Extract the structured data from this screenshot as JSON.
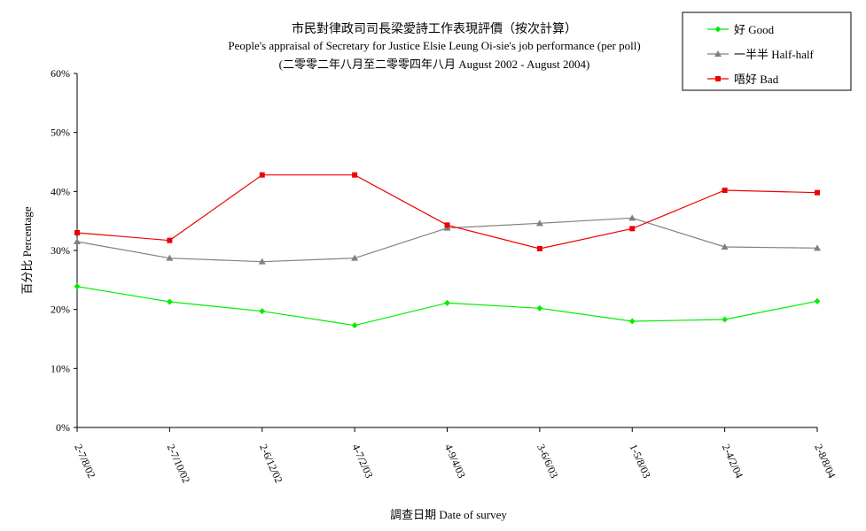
{
  "chart_data": {
    "type": "line",
    "title": "市民對律政司司長梁愛詩工作表現評價（按次計算）",
    "subtitle": "People's appraisal of Secretary for Justice Elsie Leung Oi-sie's job performance (per poll)",
    "subtitle2": "(二零零二年八月至二零零四年八月 August 2002 - August 2004)",
    "xlabel": "調查日期 Date of survey",
    "ylabel": "百分比 Percentage",
    "categories": [
      "2-7/8/02",
      "2-7/10/02",
      "2-6/12/02",
      "4-7/2/03",
      "4-9/4/03",
      "3-6/6/03",
      "1-5/8/03",
      "2-4/2/04",
      "2-8/8/04"
    ],
    "ylim": [
      0,
      60
    ],
    "yticks": [
      "0%",
      "10%",
      "20%",
      "30%",
      "40%",
      "50%",
      "60%"
    ],
    "grid": false,
    "legend_position": "top-right",
    "series": [
      {
        "name": "好 Good",
        "color": "#00ee00",
        "marker": "diamond",
        "values": [
          23.9,
          21.3,
          19.7,
          17.3,
          21.1,
          20.2,
          18.0,
          18.3,
          21.4
        ]
      },
      {
        "name": "一半半 Half-half",
        "color": "#808080",
        "marker": "triangle",
        "values": [
          31.5,
          28.7,
          28.1,
          28.7,
          33.8,
          34.6,
          35.5,
          30.6,
          30.4
        ]
      },
      {
        "name": "唔好 Bad",
        "color": "#ee0000",
        "marker": "square",
        "values": [
          33.0,
          31.7,
          42.8,
          42.8,
          34.3,
          30.3,
          33.7,
          40.2,
          39.8
        ]
      }
    ]
  }
}
